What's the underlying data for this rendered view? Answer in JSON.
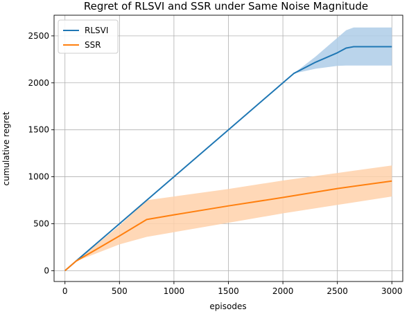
{
  "chart_data": {
    "type": "line",
    "title": "Regret of RLSVI and SSR under Same Noise Magnitude",
    "xlabel": "episodes",
    "ylabel": "cumulative regret",
    "xlim": [
      -100,
      3100
    ],
    "ylim": [
      -115,
      2720
    ],
    "xticks": [
      0,
      500,
      1000,
      1500,
      2000,
      2500,
      3000
    ],
    "yticks": [
      0,
      500,
      1000,
      1500,
      2000,
      2500
    ],
    "grid": true,
    "legend_position": "upper-left",
    "series": [
      {
        "name": "RLSVI",
        "color": "#1f77b4",
        "band_color": "#aecde8",
        "x": [
          0,
          100,
          500,
          1000,
          1500,
          2000,
          2100,
          2300,
          2500,
          2580,
          2650,
          3000
        ],
        "y": [
          0,
          100,
          500,
          1000,
          1500,
          2000,
          2100,
          2220,
          2320,
          2370,
          2385,
          2385
        ],
        "lower": [
          0,
          100,
          500,
          1000,
          1500,
          2000,
          2100,
          2150,
          2180,
          2185,
          2185,
          2185
        ],
        "upper": [
          0,
          100,
          500,
          1000,
          1500,
          2000,
          2100,
          2280,
          2480,
          2560,
          2590,
          2590
        ]
      },
      {
        "name": "SSR",
        "color": "#ff7f0e",
        "band_color": "#ffd1aa",
        "x": [
          0,
          100,
          500,
          750,
          1000,
          1500,
          2000,
          2500,
          3000
        ],
        "y": [
          0,
          100,
          370,
          545,
          595,
          690,
          780,
          875,
          955
        ],
        "lower": [
          0,
          100,
          280,
          360,
          410,
          510,
          610,
          700,
          790
        ],
        "upper": [
          0,
          100,
          480,
          750,
          790,
          870,
          960,
          1040,
          1120
        ]
      }
    ]
  }
}
